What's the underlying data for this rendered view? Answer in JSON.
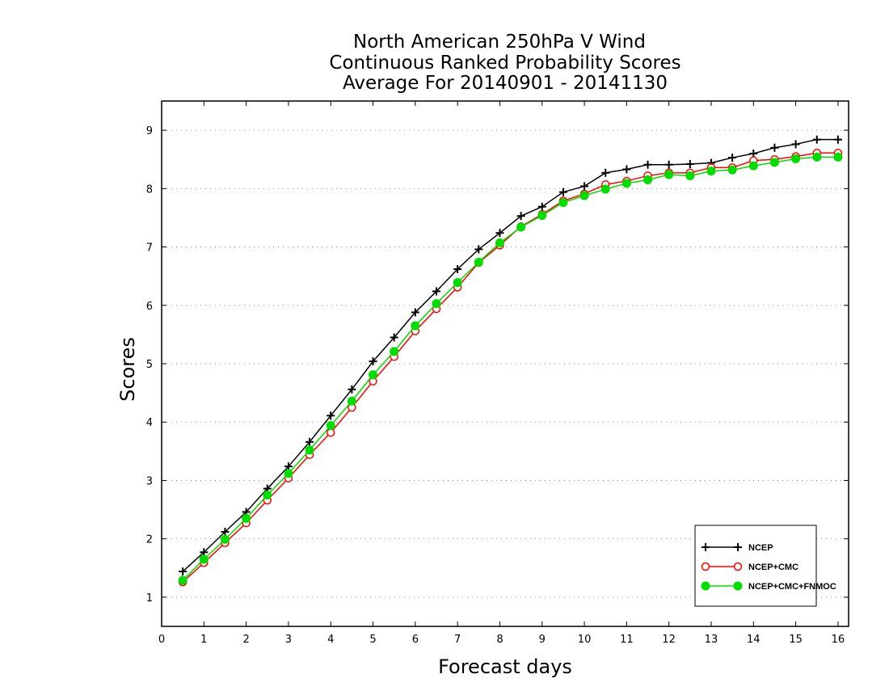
{
  "chart_data": {
    "type": "line",
    "title": [
      "North American 250hPa V Wind",
      "Continuous Ranked Probability Scores",
      "Average For 20140901 - 20141130"
    ],
    "xlabel": "Forecast days",
    "ylabel": "Scores",
    "xlim": [
      0,
      16.25
    ],
    "ylim": [
      0.5,
      9.5
    ],
    "xticks": [
      0,
      1,
      2,
      3,
      4,
      5,
      6,
      7,
      8,
      9,
      10,
      11,
      12,
      13,
      14,
      15,
      16
    ],
    "yticks": [
      1,
      2,
      3,
      4,
      5,
      6,
      7,
      8,
      9
    ],
    "grid": "horizontal dotted",
    "legend_position": "bottom-right",
    "x": [
      0.5,
      1.0,
      1.5,
      2.0,
      2.5,
      3.0,
      3.5,
      4.0,
      4.5,
      5.0,
      5.5,
      6.0,
      6.5,
      7.0,
      7.5,
      8.0,
      8.5,
      9.0,
      9.5,
      10.0,
      10.5,
      11.0,
      11.5,
      12.0,
      12.5,
      13.0,
      13.5,
      14.0,
      14.5,
      15.0,
      15.5,
      16.0
    ],
    "series": [
      {
        "name": "NCEP",
        "color": "#000000",
        "marker": "plus",
        "values": [
          1.44,
          1.77,
          2.12,
          2.46,
          2.86,
          3.24,
          3.66,
          4.11,
          4.56,
          5.04,
          5.45,
          5.88,
          6.24,
          6.62,
          6.96,
          7.24,
          7.53,
          7.69,
          7.94,
          8.04,
          8.27,
          8.33,
          8.41,
          8.41,
          8.42,
          8.44,
          8.53,
          8.6,
          8.7,
          8.76,
          8.84,
          8.84
        ]
      },
      {
        "name": "NCEP+CMC",
        "color": "#ff0000",
        "marker": "open-circle",
        "values": [
          1.26,
          1.59,
          1.93,
          2.27,
          2.66,
          3.04,
          3.44,
          3.82,
          4.25,
          4.7,
          5.12,
          5.56,
          5.94,
          6.31,
          6.73,
          7.03,
          7.35,
          7.56,
          7.79,
          7.91,
          8.07,
          8.13,
          8.22,
          8.27,
          8.27,
          8.36,
          8.36,
          8.48,
          8.5,
          8.55,
          8.61,
          8.61
        ]
      },
      {
        "name": "NCEP+CMC+FNMOC",
        "color": "#00dd00",
        "marker": "filled-circle",
        "values": [
          1.29,
          1.65,
          1.99,
          2.35,
          2.75,
          3.12,
          3.52,
          3.94,
          4.36,
          4.81,
          5.21,
          5.65,
          6.03,
          6.39,
          6.74,
          7.07,
          7.34,
          7.54,
          7.76,
          7.88,
          7.99,
          8.09,
          8.15,
          8.24,
          8.22,
          8.3,
          8.32,
          8.39,
          8.45,
          8.51,
          8.54,
          8.54
        ]
      }
    ]
  }
}
